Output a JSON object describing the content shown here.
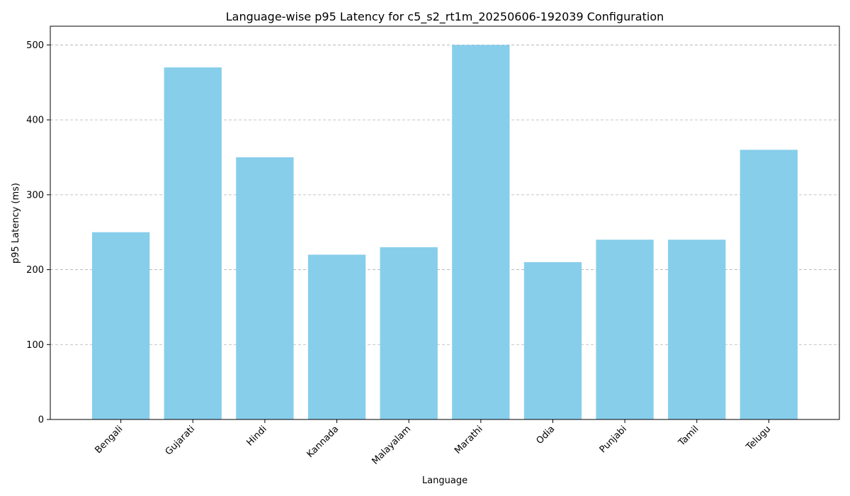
{
  "chart_data": {
    "type": "bar",
    "title": "Language-wise p95 Latency for c5_s2_rt1m_20250606-192039 Configuration",
    "xlabel": "Language",
    "ylabel": "p95 Latency (ms)",
    "categories": [
      "Bengali",
      "Gujarati",
      "Hindi",
      "Kannada",
      "Malayalam",
      "Marathi",
      "Odia",
      "Punjabi",
      "Tamil",
      "Telugu"
    ],
    "values": [
      250,
      470,
      350,
      220,
      230,
      500,
      210,
      240,
      240,
      360
    ],
    "ylim": [
      0,
      525
    ],
    "yticks": [
      0,
      100,
      200,
      300,
      400,
      500
    ],
    "grid": "y-axis dashed",
    "bar_color": "#87CEEB",
    "xtick_rotation": "45deg"
  }
}
